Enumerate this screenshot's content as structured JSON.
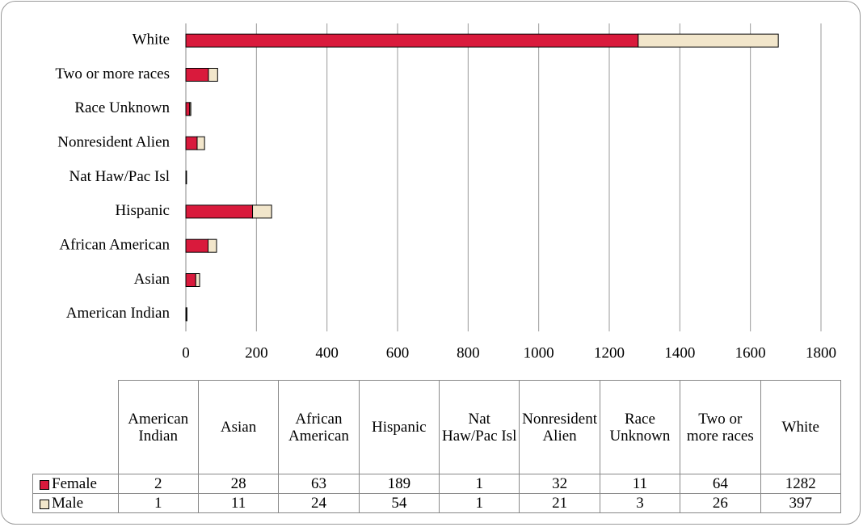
{
  "chart_data": {
    "type": "stacked-bar-horizontal",
    "categories": [
      "American Indian",
      "Asian",
      "African American",
      "Hispanic",
      "Nat Haw/Pac Isl",
      "Nonresident Alien",
      "Race Unknown",
      "Two or more races",
      "White"
    ],
    "series": [
      {
        "name": "Female",
        "color": "#d91a3c",
        "values": [
          2,
          28,
          63,
          189,
          1,
          32,
          11,
          64,
          1282
        ]
      },
      {
        "name": "Male",
        "color": "#f2e6cb",
        "values": [
          1,
          11,
          24,
          54,
          1,
          21,
          3,
          26,
          397
        ]
      }
    ],
    "xlim": [
      0,
      1800
    ],
    "xticks": [
      0,
      200,
      400,
      600,
      800,
      1000,
      1200,
      1400,
      1600,
      1800
    ],
    "grid": true
  }
}
